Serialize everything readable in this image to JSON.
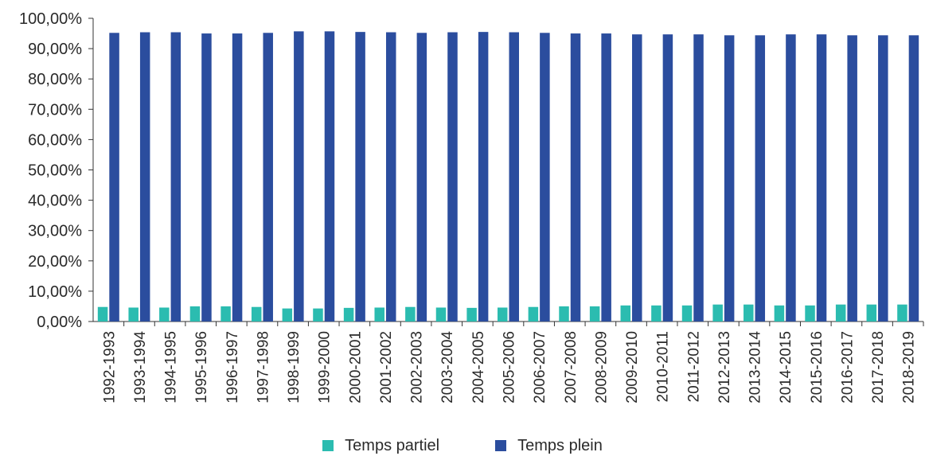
{
  "chart_data": {
    "type": "bar",
    "title": "",
    "xlabel": "",
    "ylabel": "",
    "ylim": [
      0,
      100
    ],
    "y_ticks": [
      "0,00%",
      "10,00%",
      "20,00%",
      "30,00%",
      "40,00%",
      "50,00%",
      "60,00%",
      "70,00%",
      "80,00%",
      "90,00%",
      "100,00%"
    ],
    "grid": false,
    "legend_position": "bottom",
    "categories": [
      "1992-1993",
      "1993-1994",
      "1994-1995",
      "1995-1996",
      "1996-1997",
      "1997-1998",
      "1998-1999",
      "1999-2000",
      "2000-2001",
      "2001-2002",
      "2002-2003",
      "2003-2004",
      "2004-2005",
      "2005-2006",
      "2006-2007",
      "2007-2008",
      "2008-2009",
      "2009-2010",
      "2010-2011",
      "2011-2012",
      "2012-2013",
      "2013-2014",
      "2014-2015",
      "2015-2016",
      "2016-2017",
      "2017-2018",
      "2018-2019"
    ],
    "series": [
      {
        "name": "Temps partiel",
        "color": "#2bbcb0",
        "values": [
          4.8,
          4.6,
          4.6,
          5.0,
          5.0,
          4.8,
          4.3,
          4.3,
          4.5,
          4.6,
          4.8,
          4.6,
          4.5,
          4.6,
          4.8,
          5.0,
          5.0,
          5.3,
          5.3,
          5.3,
          5.6,
          5.6,
          5.3,
          5.3,
          5.6,
          5.6,
          5.6
        ]
      },
      {
        "name": "Temps plein",
        "color": "#2b4d9e",
        "values": [
          95.2,
          95.4,
          95.4,
          95.0,
          95.0,
          95.2,
          95.7,
          95.7,
          95.5,
          95.4,
          95.2,
          95.4,
          95.5,
          95.4,
          95.2,
          95.0,
          95.0,
          94.7,
          94.7,
          94.7,
          94.4,
          94.4,
          94.7,
          94.7,
          94.4,
          94.4,
          94.4
        ]
      }
    ]
  }
}
